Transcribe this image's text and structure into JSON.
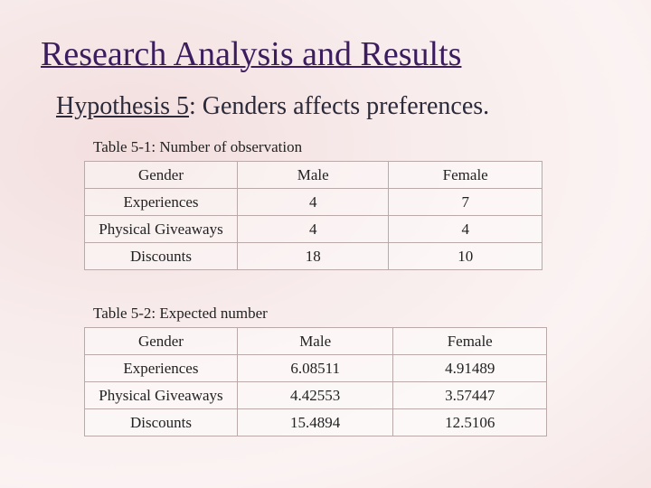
{
  "header": {
    "title": "Research Analysis and Results",
    "hypothesis_label": "Hypothesis 5",
    "hypothesis_text": ": Genders affects preferences."
  },
  "tables": [
    {
      "caption": "Table 5-1: Number of observation",
      "header": [
        "Gender",
        "Male",
        "Female"
      ],
      "rows": [
        [
          "Experiences",
          "4",
          "7"
        ],
        [
          "Physical Giveaways",
          "4",
          "4"
        ],
        [
          "Discounts",
          "18",
          "10"
        ]
      ]
    },
    {
      "caption": "Table 5-2: Expected number",
      "header": [
        "Gender",
        "Male",
        "Female"
      ],
      "rows": [
        [
          "Experiences",
          "6.08511",
          "4.91489"
        ],
        [
          "Physical Giveaways",
          "4.42553",
          "3.57447"
        ],
        [
          "Discounts",
          "15.4894",
          "12.5106"
        ]
      ]
    }
  ]
}
